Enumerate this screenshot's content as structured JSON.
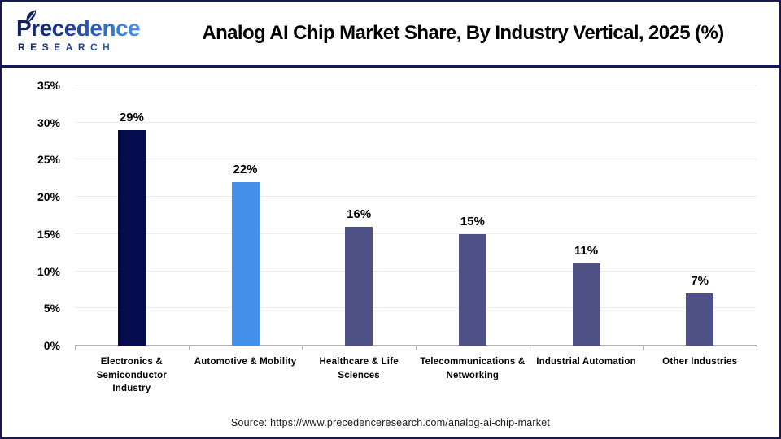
{
  "header": {
    "logo": {
      "name": "Precedence",
      "subtitle": "RESEARCH"
    },
    "title": "Analog AI Chip Market Share, By Industry Vertical, 2025 (%)"
  },
  "chart_data": {
    "type": "bar",
    "title": "Analog AI Chip Market Share, By Industry Vertical, 2025 (%)",
    "categories": [
      "Electronics & Semiconductor Industry",
      "Automotive & Mobility",
      "Healthcare & Life Sciences",
      "Telecommunications & Networking",
      "Industrial Automation",
      "Other Industries"
    ],
    "values": [
      29,
      22,
      16,
      15,
      11,
      7
    ],
    "value_labels": [
      "29%",
      "22%",
      "16%",
      "15%",
      "11%",
      "7%"
    ],
    "bar_colors": [
      "#050c4d",
      "#4590ea",
      "#4d5185",
      "#4d5185",
      "#4d5185",
      "#4d5185"
    ],
    "xlabel": "",
    "ylabel": "",
    "ylim": [
      0,
      35
    ],
    "ytick_step": 5,
    "ytick_labels": [
      "0%",
      "5%",
      "10%",
      "15%",
      "20%",
      "25%",
      "30%",
      "35%"
    ],
    "grid": true,
    "legend": false
  },
  "footer": {
    "source": "Source: https://www.precedenceresearch.com/analog-ai-chip-market"
  },
  "colors": {
    "frame_navy": "#171a52",
    "gridline": "#ececec",
    "axis_gray": "#b3b3b3",
    "bar_navy": "#050c4d",
    "bar_blue": "#4590ea",
    "bar_slate": "#4d5185",
    "logo_navy": "#131d5e",
    "logo_blue": "#4b93e8"
  }
}
